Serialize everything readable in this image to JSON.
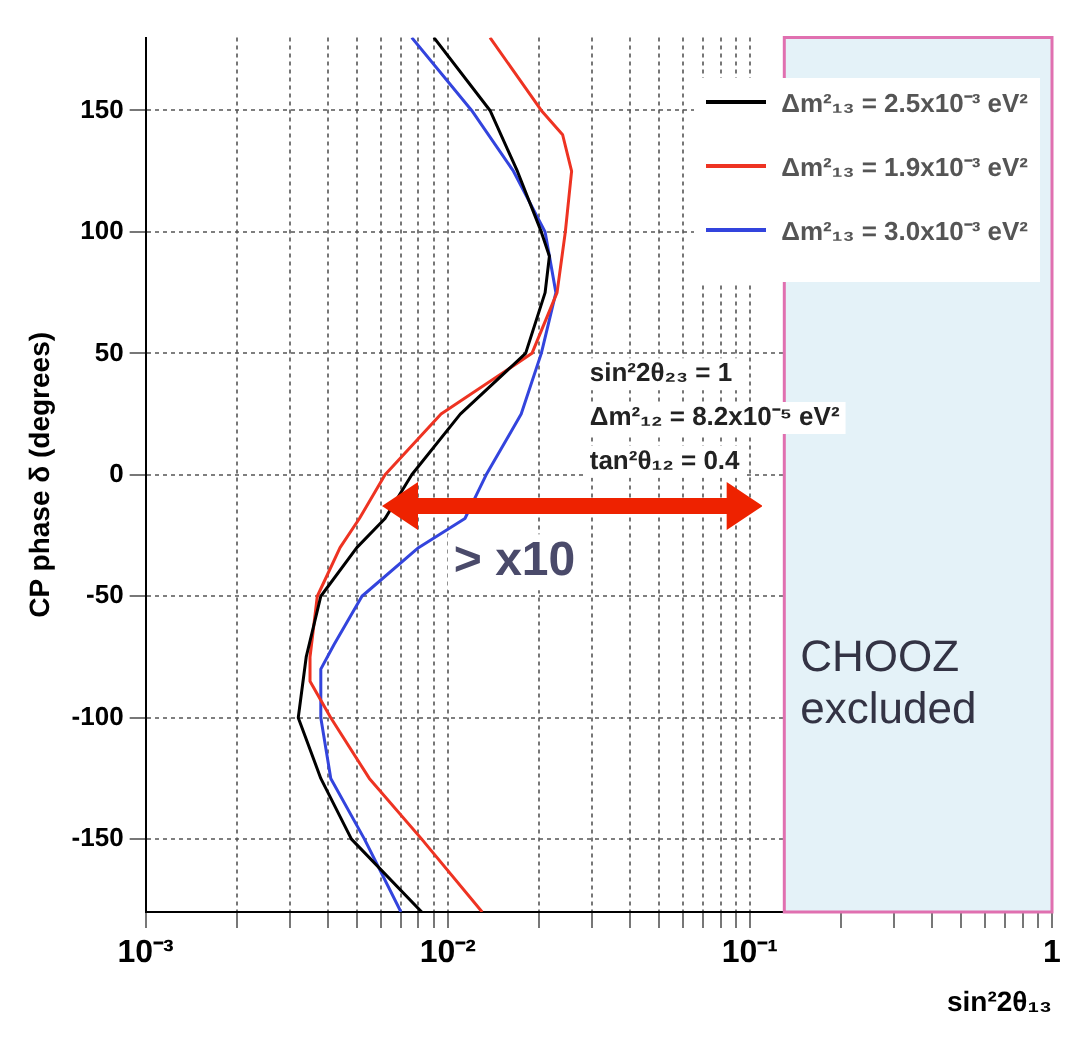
{
  "chart_data": {
    "type": "line",
    "xlabel": "sin²2θ₁₃",
    "ylabel": "CP phase δ (degrees)",
    "log": "x",
    "xlim": [
      0.001,
      1
    ],
    "ylim": [
      -180,
      180
    ],
    "xticks": [
      {
        "value": 0.001,
        "label": "10⁻³"
      },
      {
        "value": 0.002,
        "label": null
      },
      {
        "value": 0.003,
        "label": null
      },
      {
        "value": 0.004,
        "label": null
      },
      {
        "value": 0.005,
        "label": null
      },
      {
        "value": 0.006,
        "label": null
      },
      {
        "value": 0.007,
        "label": null
      },
      {
        "value": 0.008,
        "label": null
      },
      {
        "value": 0.009,
        "label": null
      },
      {
        "value": 0.01,
        "label": "10⁻²"
      },
      {
        "value": 0.02,
        "label": null
      },
      {
        "value": 0.03,
        "label": null
      },
      {
        "value": 0.04,
        "label": null
      },
      {
        "value": 0.05,
        "label": null
      },
      {
        "value": 0.06,
        "label": null
      },
      {
        "value": 0.07,
        "label": null
      },
      {
        "value": 0.08,
        "label": null
      },
      {
        "value": 0.09,
        "label": null
      },
      {
        "value": 0.1,
        "label": "10⁻¹"
      },
      {
        "value": 0.2,
        "label": null
      },
      {
        "value": 0.3,
        "label": null
      },
      {
        "value": 0.4,
        "label": null
      },
      {
        "value": 0.5,
        "label": null
      },
      {
        "value": 0.6,
        "label": null
      },
      {
        "value": 0.7,
        "label": null
      },
      {
        "value": 0.8,
        "label": null
      },
      {
        "value": 0.9,
        "label": null
      },
      {
        "value": 1,
        "label": "1"
      }
    ],
    "yticks": [
      -150,
      -100,
      -50,
      0,
      50,
      100,
      150
    ],
    "grid": true,
    "legend": "top right",
    "marker": "none",
    "line_style": "solid",
    "series": [
      {
        "name": "Δm²₁₃ = 2.5x10⁻³ eV²",
        "color": "#000000",
        "x": [
          0.0082,
          0.0048,
          0.0038,
          0.0032,
          0.0034,
          0.0038,
          0.005,
          0.0062,
          0.0076,
          0.011,
          0.0181,
          0.021,
          0.0217,
          0.0204,
          0.017,
          0.0138,
          0.009
        ],
        "values": [
          -180,
          -150,
          -125,
          -100,
          -75,
          -50,
          -30,
          -18,
          0,
          25,
          50,
          75,
          90,
          100,
          125,
          150,
          180
        ]
      },
      {
        "name": "Δm²₁₃ = 1.9x10⁻³ eV²",
        "color": "#ee3322",
        "x": [
          0.013,
          0.0082,
          0.0055,
          0.0041,
          0.0035,
          0.0035,
          0.0037,
          0.0044,
          0.0051,
          0.0062,
          0.0095,
          0.019,
          0.023,
          0.0245,
          0.0257,
          0.024,
          0.0204,
          0.0138
        ],
        "values": [
          -180,
          -150,
          -125,
          -100,
          -85,
          -75,
          -50,
          -30,
          -18,
          0,
          25,
          50,
          75,
          100,
          125,
          140,
          150,
          180
        ]
      },
      {
        "name": "Δm²₁₃ = 3.0x10⁻³ eV²",
        "color": "#3344dd",
        "x": [
          0.007,
          0.0053,
          0.0041,
          0.0038,
          0.0038,
          0.0042,
          0.0052,
          0.008,
          0.0114,
          0.0134,
          0.0175,
          0.0204,
          0.0228,
          0.021,
          0.0165,
          0.012,
          0.0076
        ],
        "values": [
          -180,
          -150,
          -125,
          -100,
          -80,
          -70,
          -50,
          -30,
          -18,
          0,
          25,
          50,
          75,
          100,
          125,
          150,
          180
        ]
      }
    ],
    "bands": [
      {
        "axis": "x",
        "from": 0.13,
        "to": 1,
        "label": "CHOOZ excluded",
        "color": "#e4f2f8"
      }
    ],
    "annotations": [
      "sin²2θ₂₃ = 1",
      "Δm²₁₂ = 8.2x10⁻⁵ eV²",
      "tan²θ₁₂ = 0.4",
      "> x10"
    ]
  }
}
